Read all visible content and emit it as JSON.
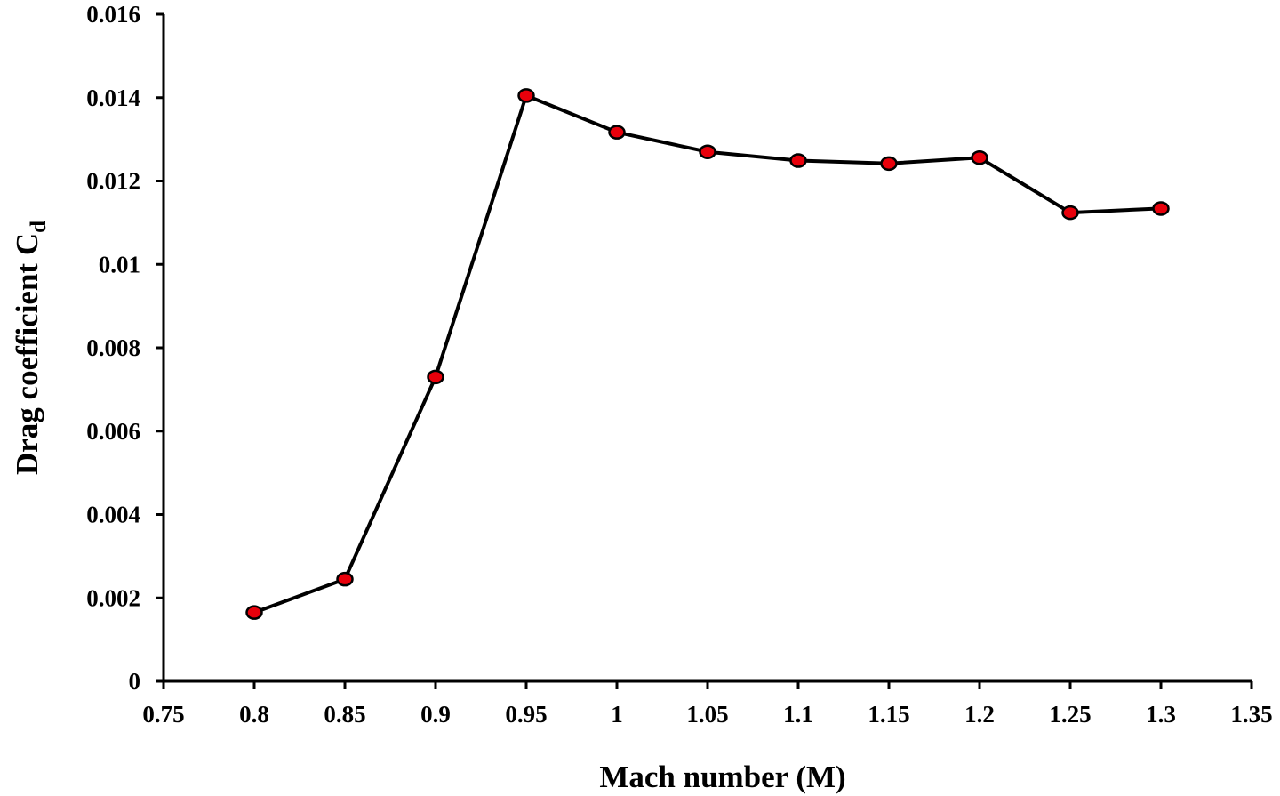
{
  "chart_data": {
    "type": "line",
    "xlabel": "Mach number (M)",
    "ylabel": {
      "main": "Drag coefficient C",
      "subscript": "d"
    },
    "xlim": [
      0.75,
      1.35
    ],
    "ylim": [
      0,
      0.016
    ],
    "x_ticks": [
      "0.75",
      "0.8",
      "0.85",
      "0.9",
      "0.95",
      "1",
      "1.05",
      "1.1",
      "1.15",
      "1.2",
      "1.25",
      "1.3",
      "1.35"
    ],
    "y_ticks": [
      "0",
      "0.002",
      "0.004",
      "0.006",
      "0.008",
      "0.01",
      "0.012",
      "0.014",
      "0.016"
    ],
    "grid": false,
    "legend": "none",
    "colors": {
      "line": "#000000",
      "marker_fill": "#e8000b",
      "marker_stroke": "#000000"
    },
    "series": [
      {
        "x": [
          0.8,
          0.85,
          0.9,
          0.95,
          1.0,
          1.05,
          1.1,
          1.15,
          1.2,
          1.25,
          1.3
        ],
        "values": [
          0.00165,
          0.00245,
          0.0073,
          0.01405,
          0.01317,
          0.0127,
          0.01249,
          0.01242,
          0.01256,
          0.01124,
          0.01134
        ]
      }
    ]
  }
}
